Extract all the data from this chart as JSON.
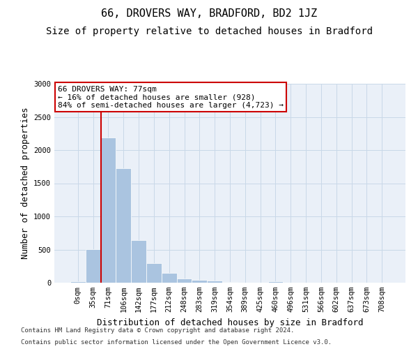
{
  "title1": "66, DROVERS WAY, BRADFORD, BD2 1JZ",
  "title2": "Size of property relative to detached houses in Bradford",
  "xlabel": "Distribution of detached houses by size in Bradford",
  "ylabel": "Number of detached properties",
  "footer1": "Contains HM Land Registry data © Crown copyright and database right 2024.",
  "footer2": "Contains public sector information licensed under the Open Government Licence v3.0.",
  "bin_labels": [
    "0sqm",
    "35sqm",
    "71sqm",
    "106sqm",
    "142sqm",
    "177sqm",
    "212sqm",
    "248sqm",
    "283sqm",
    "319sqm",
    "354sqm",
    "389sqm",
    "425sqm",
    "460sqm",
    "496sqm",
    "531sqm",
    "566sqm",
    "602sqm",
    "637sqm",
    "673sqm",
    "708sqm"
  ],
  "bar_values": [
    25,
    510,
    2190,
    1730,
    640,
    290,
    150,
    65,
    40,
    30,
    15,
    5,
    5,
    20,
    0,
    0,
    0,
    0,
    0,
    0,
    0
  ],
  "bar_color": "#aac4e0",
  "bar_edge_color": "#ffffff",
  "vline_color": "#cc0000",
  "vline_position": 1.5,
  "annotation_text": "66 DROVERS WAY: 77sqm\n← 16% of detached houses are smaller (928)\n84% of semi-detached houses are larger (4,723) →",
  "annotation_box_color": "#ffffff",
  "annotation_box_edgecolor": "#cc0000",
  "ylim": [
    0,
    3000
  ],
  "yticks": [
    0,
    500,
    1000,
    1500,
    2000,
    2500,
    3000
  ],
  "plot_bg_color": "#eaf0f8",
  "title1_fontsize": 11,
  "title2_fontsize": 10,
  "xlabel_fontsize": 9,
  "ylabel_fontsize": 9,
  "tick_fontsize": 7.5,
  "annotation_fontsize": 8,
  "footer_fontsize": 6.5
}
